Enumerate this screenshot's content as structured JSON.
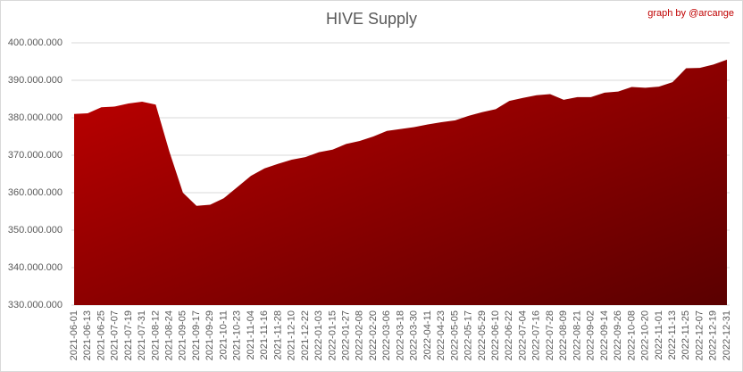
{
  "chart_data": {
    "type": "area",
    "title": "HIVE Supply",
    "subtitle": "graph by @arcange",
    "categories": [
      "2021-06-01",
      "2021-06-13",
      "2021-06-25",
      "2021-07-07",
      "2021-07-19",
      "2021-07-31",
      "2021-08-12",
      "2021-08-24",
      "2021-09-05",
      "2021-09-17",
      "2021-09-29",
      "2021-10-11",
      "2021-10-23",
      "2021-11-04",
      "2021-11-16",
      "2021-11-28",
      "2021-12-10",
      "2021-12-22",
      "2022-01-03",
      "2022-01-15",
      "2022-01-27",
      "2022-02-08",
      "2022-02-20",
      "2022-03-06",
      "2022-03-18",
      "2022-03-30",
      "2022-04-11",
      "2022-04-23",
      "2022-05-05",
      "2022-05-17",
      "2022-05-29",
      "2022-06-10",
      "2022-06-22",
      "2022-07-04",
      "2022-07-16",
      "2022-07-28",
      "2022-08-09",
      "2022-08-21",
      "2022-09-02",
      "2022-09-14",
      "2022-09-26",
      "2022-10-08",
      "2022-10-20",
      "2022-11-01",
      "2022-11-13",
      "2022-11-25",
      "2022-12-07",
      "2022-12-19",
      "2022-12-31"
    ],
    "values": [
      381000000,
      381200000,
      382800000,
      383000000,
      383800000,
      384300000,
      383500000,
      371000000,
      360000000,
      356500000,
      356800000,
      358500000,
      361500000,
      364500000,
      366500000,
      367700000,
      368800000,
      369500000,
      370800000,
      371500000,
      373000000,
      373800000,
      375000000,
      376500000,
      377000000,
      377500000,
      378200000,
      378800000,
      379300000,
      380500000,
      381500000,
      382300000,
      384500000,
      385300000,
      386000000,
      386300000,
      384800000,
      385500000,
      385500000,
      386700000,
      387000000,
      388200000,
      388000000,
      388300000,
      389500000,
      393200000,
      393300000,
      394200000,
      395500000
    ],
    "gradient": [
      "#c00000",
      "#5a0000"
    ],
    "ylim": [
      330000000,
      400000000
    ],
    "yticks": [
      {
        "value": 330000000,
        "label": "330.000.000"
      },
      {
        "value": 340000000,
        "label": "340.000.000"
      },
      {
        "value": 350000000,
        "label": "350.000.000"
      },
      {
        "value": 360000000,
        "label": "360.000.000"
      },
      {
        "value": 370000000,
        "label": "370.000.000"
      },
      {
        "value": 380000000,
        "label": "380.000.000"
      },
      {
        "value": 390000000,
        "label": "390.000.000"
      },
      {
        "value": 400000000,
        "label": "400.000.000"
      }
    ],
    "grid": true
  }
}
